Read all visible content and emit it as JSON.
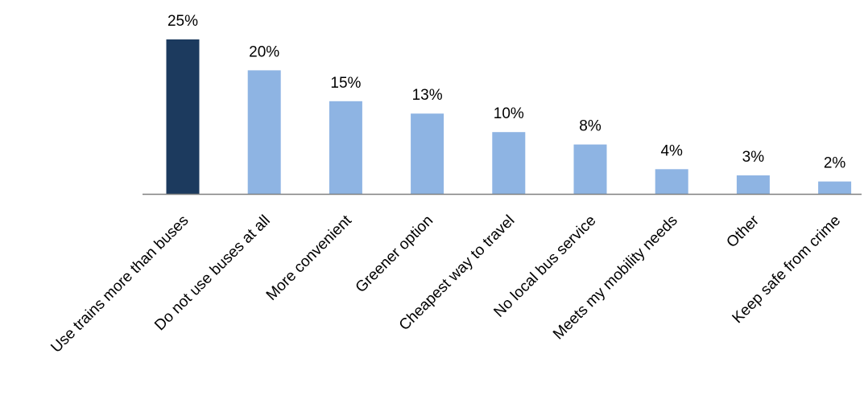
{
  "chart_data": {
    "type": "bar",
    "categories": [
      "Use trains more than buses",
      "Do not use buses at all",
      "More convenient",
      "Greener option",
      "Cheapest way to travel",
      "No local bus service",
      "Meets my mobility needs",
      "Other",
      "Keep safe from crime"
    ],
    "values": [
      25,
      20,
      15,
      13,
      10,
      8,
      4,
      3,
      2
    ],
    "value_labels": [
      "25%",
      "20%",
      "15%",
      "13%",
      "10%",
      "8%",
      "4%",
      "3%",
      "2%"
    ],
    "unit": "%",
    "ylim": [
      0,
      25
    ],
    "grid": false,
    "legend": "none",
    "colors": {
      "highlight": "#1c3a5e",
      "default": "#8eb4e3",
      "axis": "#808080"
    },
    "highlight_index": 0
  }
}
